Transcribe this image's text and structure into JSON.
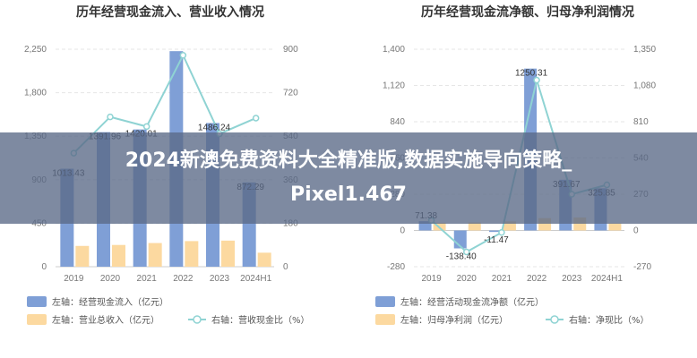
{
  "overlay": {
    "line1": "2024新澳免费资料大全精准版,数据实施导向策略_",
    "line2": "Pixel1.467"
  },
  "chart_data": [
    {
      "type": "bar",
      "title": "历年经营现金流入、营业收入情况",
      "categories": [
        "2019",
        "2020",
        "2021",
        "2022",
        "2023",
        "2024H1"
      ],
      "left_axis": {
        "min": 0,
        "max": 2250,
        "ticks": [
          "0",
          "450",
          "900",
          "1,350",
          "1,800",
          "2,250"
        ]
      },
      "right_axis": {
        "min": 0,
        "max": 900,
        "ticks": [
          "0",
          "180",
          "360",
          "540",
          "720",
          "900"
        ]
      },
      "series": [
        {
          "name": "左轴：经营现金流入（亿元）",
          "axis": "left",
          "kind": "bar",
          "color": "#7f9fd6",
          "values": [
            1013.43,
            1391.96,
            1420.01,
            2230,
            1486.24,
            872.29
          ],
          "labels": [
            "1013.43",
            "1391.96",
            "1420.01",
            "",
            "1486.24",
            "872.29"
          ]
        },
        {
          "name": "左轴：营业总收入（亿元）",
          "axis": "left",
          "kind": "bar",
          "color": "#fcd9a0",
          "values": [
            215,
            225,
            245,
            265,
            270,
            145
          ]
        },
        {
          "name": "右轴：营收现金比（%）",
          "axis": "right",
          "kind": "line",
          "color": "#8fd3d3",
          "values": [
            470,
            620,
            580,
            875,
            550,
            615
          ]
        }
      ]
    },
    {
      "type": "bar",
      "title": "历年经营现金流净额、归母净利润情况",
      "categories": [
        "2019",
        "2020",
        "2021",
        "2022",
        "2023",
        "2024H1"
      ],
      "left_axis": {
        "min": -280,
        "max": 1400,
        "ticks": [
          "-280",
          "0",
          "280",
          "560",
          "840",
          "1,120",
          "1,400"
        ]
      },
      "right_axis": {
        "min": -270,
        "max": 1350,
        "ticks": [
          "-270",
          "0",
          "270",
          "540",
          "810",
          "1,080",
          "1,350"
        ]
      },
      "series": [
        {
          "name": "左轴：经营活动现金流净额（亿元）",
          "axis": "left",
          "kind": "bar",
          "color": "#7f9fd6",
          "values": [
            71.38,
            -138.4,
            -11.47,
            1250.31,
            391.67,
            325.85
          ],
          "labels": [
            "71.38",
            "-138.40",
            "-11.47",
            "1250.31",
            "391.67",
            "325.85"
          ]
        },
        {
          "name": "左轴：归母净利润（亿元）",
          "axis": "left",
          "kind": "bar",
          "color": "#fcd9a0",
          "values": [
            60,
            62,
            70,
            95,
            100,
            55
          ]
        },
        {
          "name": "右轴：净现比（%）",
          "axis": "right",
          "kind": "line",
          "color": "#8fd3d3",
          "values": [
            75,
            -160,
            -15,
            1120,
            270,
            340
          ]
        }
      ]
    }
  ]
}
